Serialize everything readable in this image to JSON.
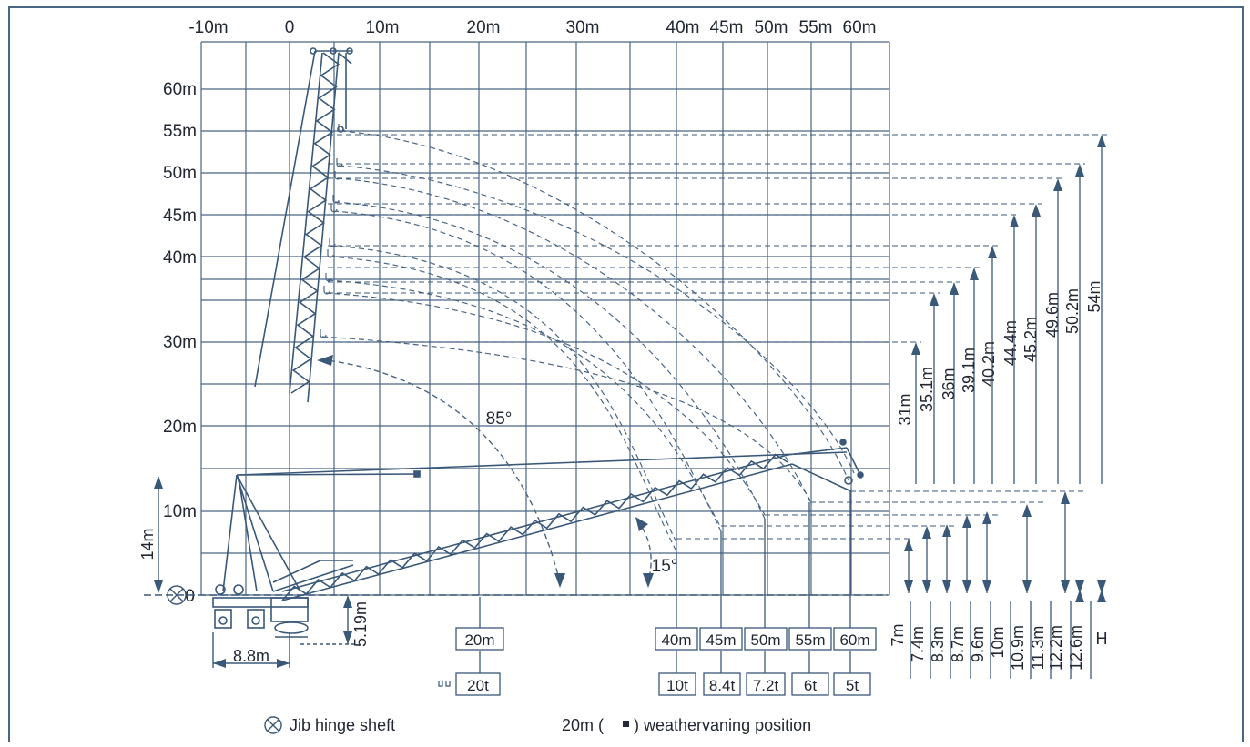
{
  "x_labels": [
    "-10m",
    "0",
    "10m",
    "20m",
    "30m",
    "40m",
    "45m",
    "50m",
    "55m",
    "60m"
  ],
  "y_labels": [
    "60m",
    "55m",
    "50m",
    "45m",
    "40m",
    "30m",
    "20m",
    "10m"
  ],
  "zero_label": "0",
  "angles": {
    "high": "85°",
    "low": "15°"
  },
  "dims": {
    "jib_hinge_height": "14m",
    "pivot_height": "5.19m",
    "base_width": "8.8m"
  },
  "jib_lengths": [
    "20m",
    "40m",
    "45m",
    "50m",
    "55m",
    "60m"
  ],
  "loads": [
    "20t",
    "10t",
    "8.4t",
    "7.2t",
    "6t",
    "5t"
  ],
  "heights_high": [
    "31m",
    "35.1m",
    "36m",
    "39.1m",
    "40.2m",
    "44.4m",
    "45.2m",
    "49.6m",
    "50.2m",
    "54m"
  ],
  "heights_low": [
    "7m",
    "7.4m",
    "8.3m",
    "8.7m",
    "9.6m",
    "10m",
    "10.9m",
    "11.3m",
    "12.2m",
    "12.6m",
    "H"
  ],
  "legend": {
    "hinge": "Jib hinge sheft",
    "weathervane_prefix": "20m (",
    "weathervane_suffix:": "",
    "weathervane_suffix": ") weathervaning position"
  },
  "colors": {
    "line": "#3a5878",
    "grid": "#4b6684",
    "text": "#222833"
  }
}
